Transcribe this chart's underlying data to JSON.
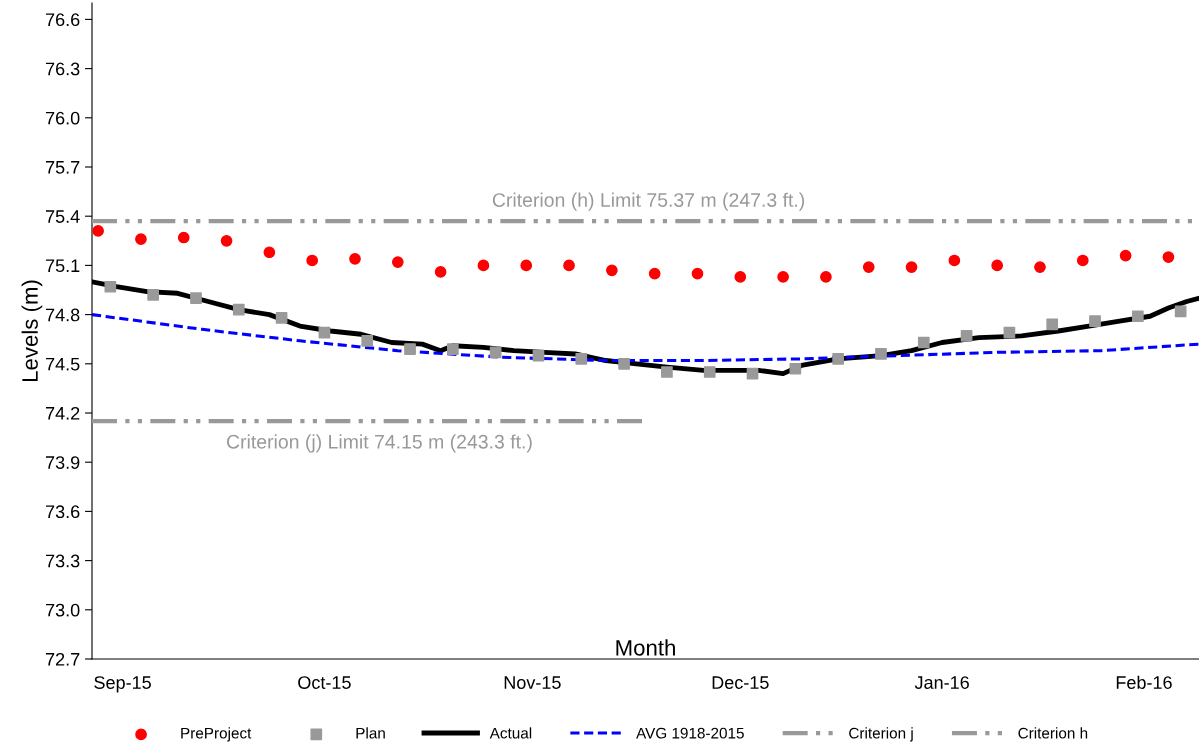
{
  "chart_data": {
    "type": "line",
    "xlabel": "Month",
    "ylabel": "Levels (m)",
    "xlim": [
      "2015-09-01",
      "2016-02-29"
    ],
    "xticks": [
      {
        "value": "2015-09-06",
        "label": "Sep-15"
      },
      {
        "value": "2015-10-09",
        "label": "Oct-15"
      },
      {
        "value": "2015-11-12",
        "label": "Nov-15"
      },
      {
        "value": "2015-12-16",
        "label": "Dec-15"
      },
      {
        "value": "2016-01-18",
        "label": "Jan-16"
      },
      {
        "value": "2016-02-20",
        "label": "Feb-16"
      }
    ],
    "ylim": [
      72.7,
      76.7
    ],
    "yticks": [
      {
        "value": 72.7,
        "label": "72.7"
      },
      {
        "value": 73.0,
        "label": "73.0"
      },
      {
        "value": 73.3,
        "label": "73.3"
      },
      {
        "value": 73.6,
        "label": "73.6"
      },
      {
        "value": 73.9,
        "label": "73.9"
      },
      {
        "value": 74.2,
        "label": "74.2"
      },
      {
        "value": 74.5,
        "label": "74.5"
      },
      {
        "value": 74.8,
        "label": "74.8"
      },
      {
        "value": 75.1,
        "label": "75.1"
      },
      {
        "value": 75.4,
        "label": "75.4"
      },
      {
        "value": 75.7,
        "label": "75.7"
      },
      {
        "value": 76.0,
        "label": "76.0"
      },
      {
        "value": 76.3,
        "label": "76.3"
      },
      {
        "value": 76.6,
        "label": "76.6"
      }
    ],
    "grid": false,
    "legend": "bottom",
    "tick_labels": "xy",
    "series": [
      {
        "name": "PreProject",
        "type": "scatter",
        "marker": "circle",
        "color": "#ff0000",
        "x": [
          "2015-09-02",
          "2015-09-09",
          "2015-09-16",
          "2015-09-23",
          "2015-09-30",
          "2015-10-07",
          "2015-10-14",
          "2015-10-21",
          "2015-10-28",
          "2015-11-04",
          "2015-11-11",
          "2015-11-18",
          "2015-11-25",
          "2015-12-02",
          "2015-12-09",
          "2015-12-16",
          "2015-12-23",
          "2015-12-30",
          "2016-01-06",
          "2016-01-13",
          "2016-01-20",
          "2016-01-27",
          "2016-02-03",
          "2016-02-10",
          "2016-02-17",
          "2016-02-24"
        ],
        "values": [
          75.31,
          75.26,
          75.27,
          75.25,
          75.18,
          75.13,
          75.14,
          75.12,
          75.06,
          75.1,
          75.1,
          75.1,
          75.07,
          75.05,
          75.05,
          75.03,
          75.03,
          75.03,
          75.09,
          75.09,
          75.13,
          75.1,
          75.09,
          75.13,
          75.16,
          75.15
        ]
      },
      {
        "name": "Plan",
        "type": "scatter",
        "marker": "square",
        "color": "#999999",
        "x": [
          "2015-09-04",
          "2015-09-11",
          "2015-09-18",
          "2015-09-25",
          "2015-10-02",
          "2015-10-09",
          "2015-10-16",
          "2015-10-23",
          "2015-10-30",
          "2015-11-06",
          "2015-11-13",
          "2015-11-20",
          "2015-11-27",
          "2015-12-04",
          "2015-12-11",
          "2015-12-18",
          "2015-12-25",
          "2016-01-01",
          "2016-01-08",
          "2016-01-15",
          "2016-01-22",
          "2016-01-29",
          "2016-02-05",
          "2016-02-12",
          "2016-02-19",
          "2016-02-26"
        ],
        "values": [
          74.97,
          74.92,
          74.9,
          74.83,
          74.78,
          74.69,
          74.64,
          74.59,
          74.59,
          74.57,
          74.55,
          74.53,
          74.5,
          74.45,
          74.45,
          74.44,
          74.47,
          74.53,
          74.56,
          74.63,
          74.67,
          74.69,
          74.74,
          74.76,
          74.79,
          74.82
        ]
      },
      {
        "name": "Actual",
        "line_style": "solid",
        "color": "#000000",
        "x": [
          "2015-09-01",
          "2015-09-05",
          "2015-09-10",
          "2015-09-15",
          "2015-09-20",
          "2015-09-25",
          "2015-09-30",
          "2015-10-05",
          "2015-10-10",
          "2015-10-15",
          "2015-10-20",
          "2015-10-25",
          "2015-10-28",
          "2015-10-30",
          "2015-11-04",
          "2015-11-09",
          "2015-11-14",
          "2015-11-19",
          "2015-11-24",
          "2015-11-29",
          "2015-12-04",
          "2015-12-10",
          "2015-12-16",
          "2015-12-19",
          "2015-12-23",
          "2015-12-26",
          "2016-01-01",
          "2016-01-08",
          "2016-01-13",
          "2016-01-18",
          "2016-01-24",
          "2016-01-31",
          "2016-02-06",
          "2016-02-11",
          "2016-02-16",
          "2016-02-21",
          "2016-02-24",
          "2016-02-27",
          "2016-02-29"
        ],
        "values": [
          75.0,
          74.97,
          74.94,
          74.93,
          74.88,
          74.83,
          74.8,
          74.73,
          74.7,
          74.68,
          74.63,
          74.62,
          74.58,
          74.61,
          74.6,
          74.58,
          74.57,
          74.56,
          74.52,
          74.5,
          74.48,
          74.46,
          74.46,
          74.46,
          74.44,
          74.49,
          74.53,
          74.55,
          74.58,
          74.63,
          74.66,
          74.67,
          74.7,
          74.73,
          74.76,
          74.79,
          74.84,
          74.88,
          74.9
        ]
      },
      {
        "name": "AVG 1918-2015",
        "line_style": "dashed",
        "color": "#0000ff",
        "x": [
          "2015-09-01",
          "2015-09-19",
          "2015-10-05",
          "2015-10-21",
          "2015-11-07",
          "2015-11-24",
          "2015-12-10",
          "2015-12-26",
          "2016-01-11",
          "2016-01-27",
          "2016-02-13",
          "2016-02-29"
        ],
        "values": [
          74.8,
          74.71,
          74.64,
          74.58,
          74.54,
          74.52,
          74.52,
          74.53,
          74.55,
          74.57,
          74.58,
          74.62
        ]
      },
      {
        "name": "Criterion j",
        "line_style": "dashdotdot",
        "color": "#999999",
        "x": [
          "2015-09-01",
          "2015-11-30"
        ],
        "values": [
          74.15,
          74.15
        ]
      },
      {
        "name": "Criterion h",
        "line_style": "dashdotdot",
        "color": "#999999",
        "x": [
          "2015-09-01",
          "2016-02-29"
        ],
        "values": [
          75.37,
          75.37
        ]
      }
    ],
    "annotations": [
      {
        "text": "Criterion (h) Limit 75.37 m (247.3 ft.)",
        "x": "2015-12-01",
        "y": 75.37
      },
      {
        "text": "Criterion (j) Limit 74.15 m (243.3 ft.)",
        "x": "2015-10-18",
        "y": 74.15
      }
    ]
  }
}
